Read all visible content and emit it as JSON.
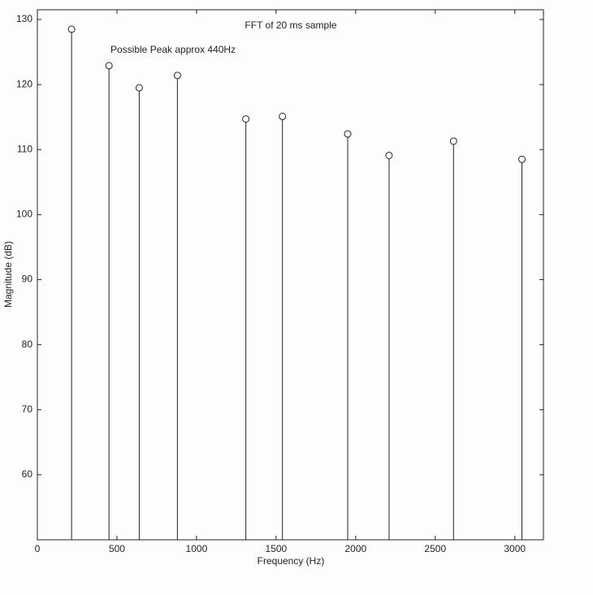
{
  "chart_data": {
    "type": "stem",
    "title": "FFT of 20 ms sample",
    "annotation": "Possible Peak approx 440Hz",
    "x_label": "Frequency (Hz)",
    "y_label": "Magnitude (dB)",
    "x": [
      215,
      450,
      640,
      880,
      1310,
      1540,
      1950,
      2210,
      2615,
      3045
    ],
    "values": [
      128.5,
      122.9,
      119.5,
      121.4,
      114.7,
      115.1,
      112.4,
      109.1,
      111.3,
      108.5
    ],
    "color": "#222222",
    "xlim": [
      0,
      3180
    ],
    "ylim": [
      50,
      131.5
    ],
    "xticks": [
      0,
      500,
      1000,
      1500,
      2000,
      2500,
      3000
    ],
    "yticks": [
      60,
      70,
      80,
      90,
      100,
      110,
      120,
      130
    ],
    "grid": false
  }
}
